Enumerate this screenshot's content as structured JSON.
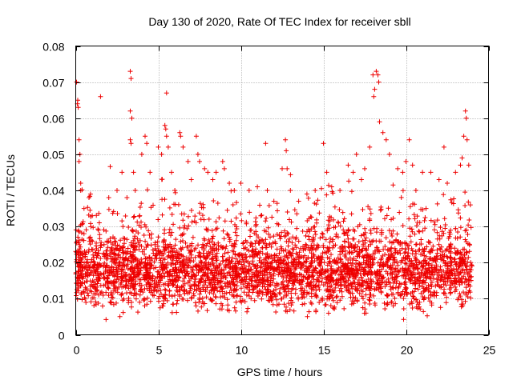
{
  "chart_data": {
    "type": "scatter",
    "title": "Day 130 of 2020, Rate Of TEC Index for receiver sbll",
    "xlabel": "GPS time / hours",
    "ylabel": "ROTI / TECUs",
    "xlim": [
      0,
      25
    ],
    "ylim": [
      0,
      0.08
    ],
    "xticks": [
      0,
      5,
      10,
      15,
      20,
      25
    ],
    "yticks": [
      0,
      0.01,
      0.02,
      0.03,
      0.04,
      0.05,
      0.06,
      0.07,
      0.08
    ],
    "xtick_labels": [
      "0",
      "5",
      "10",
      "15",
      "20",
      "25"
    ],
    "ytick_labels": [
      "0",
      "0.01",
      "0.02",
      "0.03",
      "0.04",
      "0.05",
      "0.06",
      "0.07",
      "0.08"
    ],
    "grid": true,
    "marker": "+",
    "color": "#ee0000",
    "series": [
      {
        "name": "ROTI",
        "points": [
          [
            0.05,
            0.07
          ],
          [
            0.1,
            0.064
          ],
          [
            0.12,
            0.065
          ],
          [
            0.15,
            0.063
          ],
          [
            0.2,
            0.054
          ],
          [
            0.2,
            0.048
          ],
          [
            0.25,
            0.05
          ],
          [
            0.3,
            0.042
          ],
          [
            0.3,
            0.04
          ],
          [
            0.5,
            0.035
          ],
          [
            0.8,
            0.038
          ],
          [
            1.0,
            0.033
          ],
          [
            1.5,
            0.066
          ],
          [
            2.0,
            0.038
          ],
          [
            2.5,
            0.04
          ],
          [
            2.8,
            0.045
          ],
          [
            3.1,
            0.038
          ],
          [
            3.3,
            0.073
          ],
          [
            3.35,
            0.071
          ],
          [
            3.3,
            0.062
          ],
          [
            3.4,
            0.06
          ],
          [
            3.3,
            0.054
          ],
          [
            3.35,
            0.053
          ],
          [
            3.5,
            0.045
          ],
          [
            3.6,
            0.04
          ],
          [
            4.0,
            0.05
          ],
          [
            4.2,
            0.055
          ],
          [
            4.3,
            0.053
          ],
          [
            4.5,
            0.045
          ],
          [
            5.0,
            0.052
          ],
          [
            5.2,
            0.05
          ],
          [
            5.4,
            0.058
          ],
          [
            5.45,
            0.057
          ],
          [
            5.5,
            0.055
          ],
          [
            5.5,
            0.067
          ],
          [
            5.6,
            0.052
          ],
          [
            5.8,
            0.045
          ],
          [
            6.0,
            0.04
          ],
          [
            6.3,
            0.056
          ],
          [
            6.35,
            0.055
          ],
          [
            6.5,
            0.052
          ],
          [
            6.8,
            0.048
          ],
          [
            7.0,
            0.043
          ],
          [
            7.3,
            0.055
          ],
          [
            7.4,
            0.05
          ],
          [
            7.5,
            0.048
          ],
          [
            7.8,
            0.046
          ],
          [
            8.0,
            0.045
          ],
          [
            8.3,
            0.043
          ],
          [
            8.5,
            0.045
          ],
          [
            8.9,
            0.048
          ],
          [
            9.0,
            0.046
          ],
          [
            9.3,
            0.042
          ],
          [
            9.6,
            0.04
          ],
          [
            10.0,
            0.042
          ],
          [
            10.5,
            0.04
          ],
          [
            11.0,
            0.041
          ],
          [
            11.5,
            0.053
          ],
          [
            11.6,
            0.04
          ],
          [
            12.0,
            0.037
          ],
          [
            12.5,
            0.046
          ],
          [
            12.7,
            0.054
          ],
          [
            12.75,
            0.051
          ],
          [
            12.8,
            0.046
          ],
          [
            13.0,
            0.04
          ],
          [
            13.5,
            0.037
          ],
          [
            14.0,
            0.039
          ],
          [
            14.5,
            0.04
          ],
          [
            15.0,
            0.053
          ],
          [
            15.2,
            0.045
          ],
          [
            15.5,
            0.041
          ],
          [
            16.0,
            0.04
          ],
          [
            16.5,
            0.047
          ],
          [
            16.8,
            0.045
          ],
          [
            17.0,
            0.05
          ],
          [
            17.3,
            0.043
          ],
          [
            17.5,
            0.046
          ],
          [
            17.8,
            0.052
          ],
          [
            18.0,
            0.072
          ],
          [
            18.05,
            0.066
          ],
          [
            18.1,
            0.068
          ],
          [
            18.2,
            0.073
          ],
          [
            18.3,
            0.072
          ],
          [
            18.35,
            0.07
          ],
          [
            18.4,
            0.059
          ],
          [
            18.6,
            0.056
          ],
          [
            18.8,
            0.054
          ],
          [
            19.0,
            0.05
          ],
          [
            19.5,
            0.046
          ],
          [
            19.8,
            0.045
          ],
          [
            20.0,
            0.048
          ],
          [
            20.2,
            0.054
          ],
          [
            20.4,
            0.047
          ],
          [
            20.6,
            0.04
          ],
          [
            21.0,
            0.045
          ],
          [
            21.5,
            0.045
          ],
          [
            22.0,
            0.043
          ],
          [
            22.3,
            0.052
          ],
          [
            22.5,
            0.042
          ],
          [
            23.0,
            0.045
          ],
          [
            23.3,
            0.047
          ],
          [
            23.4,
            0.049
          ],
          [
            23.5,
            0.055
          ],
          [
            23.6,
            0.062
          ],
          [
            23.65,
            0.06
          ],
          [
            23.7,
            0.054
          ],
          [
            23.8,
            0.047
          ],
          [
            23.9,
            0.036
          ]
        ],
        "band": {
          "description_values": "dense cloud of ROTI values over 0-24 h",
          "x_range": [
            0,
            24
          ],
          "y_core": [
            0.008,
            0.03
          ],
          "y_median": 0.017
        }
      }
    ]
  }
}
